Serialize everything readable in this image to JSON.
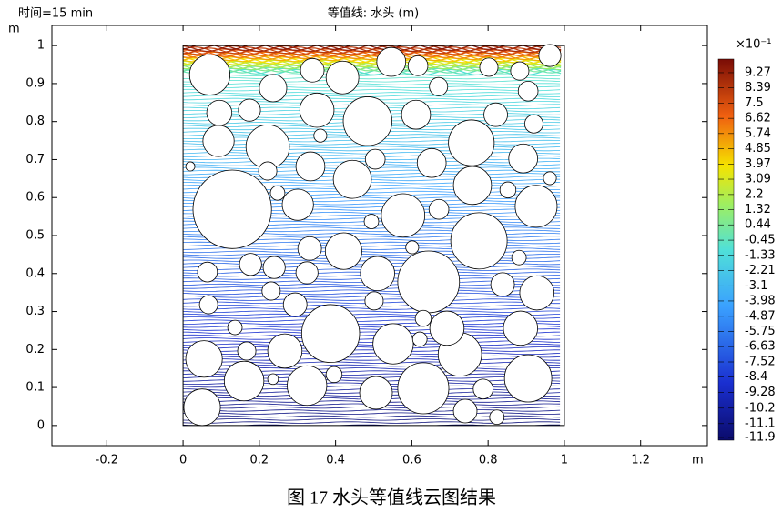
{
  "chart_data": {
    "type": "contour",
    "subtitle": "时间=15 min",
    "title": "等值线: 水头 (m)",
    "x_label": "m",
    "y_label": "m",
    "xlim": [
      -0.344,
      1.375
    ],
    "ylim": [
      -0.053,
      1.053
    ],
    "xticks": [
      -0.2,
      0,
      0.2,
      0.4,
      0.6,
      0.8,
      1,
      1.2
    ],
    "yticks": [
      0,
      0.1,
      0.2,
      0.3,
      0.4,
      0.5,
      0.6,
      0.7,
      0.8,
      0.9,
      1
    ],
    "domain": [
      0,
      1,
      0,
      1
    ],
    "colorbar": {
      "label": "×10⁻¹",
      "clim": [
        -12.06,
        10.06
      ],
      "ticks": [
        9.27,
        8.39,
        7.5,
        6.62,
        5.74,
        4.85,
        3.97,
        3.09,
        2.2,
        1.32,
        0.44,
        -0.45,
        -1.33,
        -2.21,
        -3.1,
        -3.98,
        -4.87,
        -5.75,
        -6.63,
        -7.52,
        -8.4,
        -9.28,
        -10.2,
        -11.1,
        -11.9
      ]
    },
    "circles": [
      [
        0.129,
        0.569,
        0.103
      ],
      [
        0.387,
        0.242,
        0.076
      ],
      [
        0.644,
        0.378,
        0.081
      ],
      [
        0.776,
        0.486,
        0.074
      ],
      [
        0.484,
        0.801,
        0.064
      ],
      [
        0.756,
        0.744,
        0.06
      ],
      [
        0.222,
        0.734,
        0.057
      ],
      [
        0.63,
        0.098,
        0.067
      ],
      [
        0.905,
        0.124,
        0.062
      ],
      [
        0.926,
        0.577,
        0.055
      ],
      [
        0.577,
        0.553,
        0.057
      ],
      [
        0.551,
        0.215,
        0.053
      ],
      [
        0.421,
        0.459,
        0.048
      ],
      [
        0.726,
        0.187,
        0.057
      ],
      [
        0.444,
        0.648,
        0.05
      ],
      [
        0.351,
        0.83,
        0.045
      ],
      [
        0.16,
        0.117,
        0.052
      ],
      [
        0.325,
        0.105,
        0.052
      ],
      [
        0.51,
        0.4,
        0.045
      ],
      [
        0.759,
        0.632,
        0.05
      ],
      [
        0.07,
        0.923,
        0.053
      ],
      [
        0.05,
        0.048,
        0.048
      ],
      [
        0.055,
        0.175,
        0.048
      ],
      [
        0.267,
        0.196,
        0.045
      ],
      [
        0.692,
        0.256,
        0.045
      ],
      [
        0.885,
        0.256,
        0.045
      ],
      [
        0.928,
        0.349,
        0.045
      ],
      [
        0.418,
        0.916,
        0.043
      ],
      [
        0.093,
        0.749,
        0.041
      ],
      [
        0.301,
        0.581,
        0.041
      ],
      [
        0.334,
        0.682,
        0.038
      ],
      [
        0.546,
        0.957,
        0.038
      ],
      [
        0.236,
        0.888,
        0.036
      ],
      [
        0.506,
        0.086,
        0.043
      ],
      [
        0.652,
        0.691,
        0.038
      ],
      [
        0.82,
        0.818,
        0.031
      ],
      [
        0.892,
        0.703,
        0.038
      ],
      [
        0.611,
        0.818,
        0.038
      ],
      [
        0.332,
        0.466,
        0.031
      ],
      [
        0.239,
        0.416,
        0.029
      ],
      [
        0.177,
        0.424,
        0.029
      ],
      [
        0.325,
        0.402,
        0.029
      ],
      [
        0.294,
        0.318,
        0.031
      ],
      [
        0.095,
        0.823,
        0.033
      ],
      [
        0.174,
        0.83,
        0.029
      ],
      [
        0.339,
        0.935,
        0.031
      ],
      [
        0.616,
        0.947,
        0.026
      ],
      [
        0.504,
        0.701,
        0.026
      ],
      [
        0.74,
        0.038,
        0.031
      ],
      [
        0.838,
        0.371,
        0.031
      ],
      [
        0.787,
        0.096,
        0.026
      ],
      [
        0.962,
        0.974,
        0.029
      ],
      [
        0.064,
        0.404,
        0.026
      ],
      [
        0.067,
        0.318,
        0.024
      ],
      [
        0.231,
        0.354,
        0.024
      ],
      [
        0.167,
        0.196,
        0.024
      ],
      [
        0.501,
        0.328,
        0.024
      ],
      [
        0.396,
        0.134,
        0.021
      ],
      [
        0.92,
        0.794,
        0.024
      ],
      [
        0.905,
        0.88,
        0.026
      ],
      [
        0.883,
        0.933,
        0.024
      ],
      [
        0.802,
        0.943,
        0.024
      ],
      [
        0.67,
        0.892,
        0.024
      ],
      [
        0.852,
        0.62,
        0.021
      ],
      [
        0.671,
        0.569,
        0.026
      ],
      [
        0.222,
        0.67,
        0.024
      ],
      [
        0.248,
        0.612,
        0.019
      ],
      [
        0.63,
        0.282,
        0.021
      ],
      [
        0.621,
        0.227,
        0.019
      ],
      [
        0.881,
        0.442,
        0.019
      ],
      [
        0.494,
        0.537,
        0.019
      ],
      [
        0.36,
        0.763,
        0.017
      ],
      [
        0.601,
        0.469,
        0.017
      ],
      [
        0.823,
        0.022,
        0.019
      ],
      [
        0.136,
        0.258,
        0.019
      ],
      [
        0.236,
        0.122,
        0.014
      ],
      [
        0.962,
        0.651,
        0.017
      ],
      [
        0.019,
        0.682,
        0.012
      ]
    ],
    "caption": "图 17 水头等值线云图结果"
  }
}
